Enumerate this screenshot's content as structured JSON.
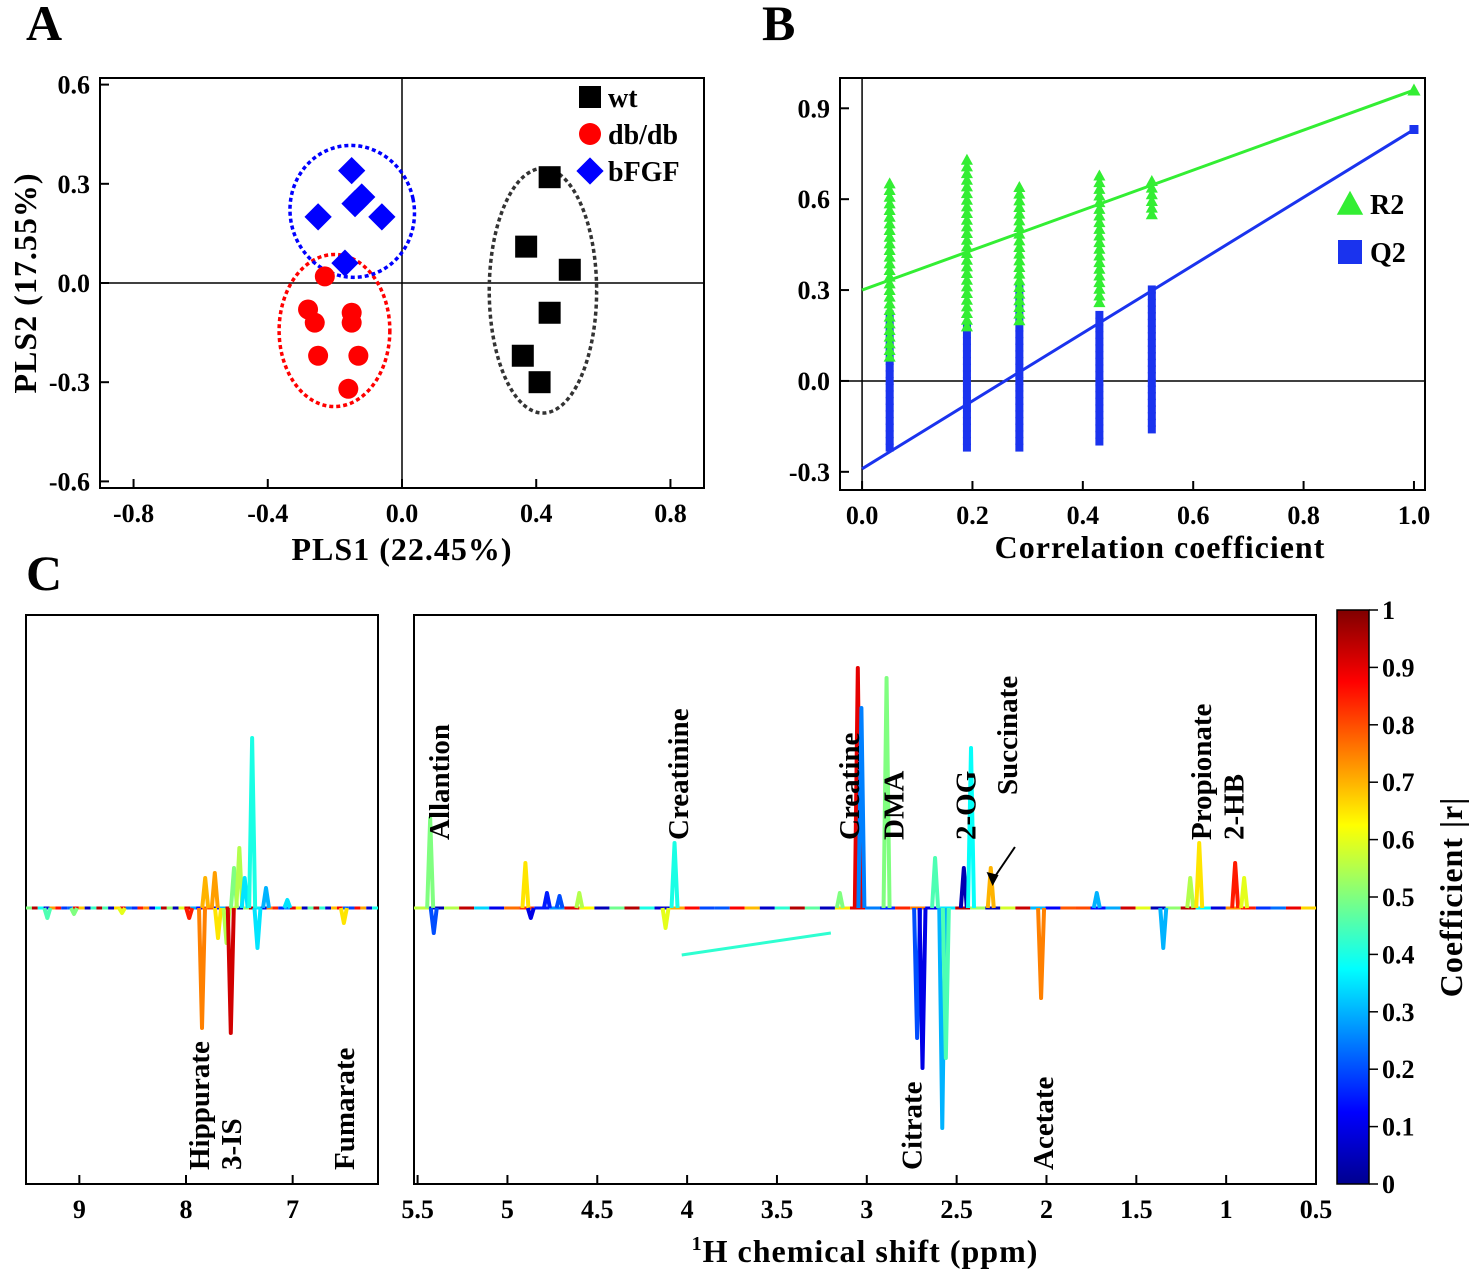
{
  "chart_data": [
    {
      "panel": "A",
      "type": "scatter",
      "xlabel": "PLS1 (22.45%)",
      "ylabel": "PLS2 (17.55%)",
      "xlim": [
        -0.9,
        0.9
      ],
      "ylim": [
        -0.62,
        0.62
      ],
      "xticks": [
        "-0.8",
        "-0.4",
        "0.0",
        "0.4",
        "0.8"
      ],
      "yticks": [
        "0.6",
        "0.3",
        "0.0",
        "-0.3",
        "-0.6"
      ],
      "xtick_values": [
        -0.8,
        -0.4,
        0.0,
        0.4,
        0.8
      ],
      "ytick_values": [
        0.6,
        0.3,
        0.0,
        -0.3,
        -0.6
      ],
      "legend_position": "top-right",
      "series": [
        {
          "name": "wt",
          "marker": "square",
          "color": "#000000",
          "ellipse_color": "#333333",
          "points": [
            [
              0.44,
              0.32
            ],
            [
              0.37,
              0.11
            ],
            [
              0.5,
              0.04
            ],
            [
              0.44,
              -0.09
            ],
            [
              0.36,
              -0.22
            ],
            [
              0.41,
              -0.3
            ]
          ]
        },
        {
          "name": "db/db",
          "marker": "circle",
          "color": "#ff0000",
          "ellipse_color": "#ff0000",
          "points": [
            [
              -0.23,
              0.02
            ],
            [
              -0.28,
              -0.08
            ],
            [
              -0.26,
              -0.12
            ],
            [
              -0.15,
              -0.09
            ],
            [
              -0.15,
              -0.12
            ],
            [
              -0.25,
              -0.22
            ],
            [
              -0.13,
              -0.22
            ],
            [
              -0.16,
              -0.32
            ]
          ]
        },
        {
          "name": "bFGF",
          "marker": "diamond",
          "color": "#0000ff",
          "ellipse_color": "#0000ff",
          "points": [
            [
              -0.15,
              0.34
            ],
            [
              -0.12,
              0.26
            ],
            [
              -0.25,
              0.2
            ],
            [
              -0.14,
              0.24
            ],
            [
              -0.06,
              0.2
            ],
            [
              -0.17,
              0.06
            ]
          ]
        }
      ]
    },
    {
      "panel": "B",
      "type": "scatter",
      "xlabel": "Correlation coefficient",
      "ylabel": "",
      "xlim": [
        -0.04,
        1.02
      ],
      "ylim": [
        -0.36,
        1.0
      ],
      "xticks": [
        "0.0",
        "0.2",
        "0.4",
        "0.6",
        "0.8",
        "1.0"
      ],
      "yticks": [
        "0.9",
        "0.6",
        "0.3",
        "0.0",
        "-0.3"
      ],
      "xtick_values": [
        0.0,
        0.2,
        0.4,
        0.6,
        0.8,
        1.0
      ],
      "ytick_values": [
        0.9,
        0.6,
        0.3,
        0.0,
        -0.3
      ],
      "legend_position": "right",
      "series": [
        {
          "name": "R2",
          "marker": "triangle",
          "color": "#33ee33",
          "columns": [
            {
              "x": 0.05,
              "min": 0.08,
              "max": 0.67
            },
            {
              "x": 0.19,
              "min": 0.18,
              "max": 0.75
            },
            {
              "x": 0.285,
              "min": 0.2,
              "max": 0.64
            },
            {
              "x": 0.43,
              "min": 0.26,
              "max": 0.69
            },
            {
              "x": 0.525,
              "min": 0.55,
              "max": 0.67
            }
          ],
          "extra_point": [
            1.0,
            0.96
          ],
          "fit_line": [
            [
              0.0,
              0.3
            ],
            [
              1.0,
              0.96
            ]
          ]
        },
        {
          "name": "Q2",
          "marker": "square",
          "color": "#1a33ee",
          "columns": [
            {
              "x": 0.05,
              "min": -0.22,
              "max": 0.23
            },
            {
              "x": 0.19,
              "min": -0.22,
              "max": 0.18
            },
            {
              "x": 0.285,
              "min": -0.22,
              "max": 0.31
            },
            {
              "x": 0.43,
              "min": -0.2,
              "max": 0.23
            },
            {
              "x": 0.525,
              "min": -0.16,
              "max": 0.32
            }
          ],
          "extra_point": [
            1.0,
            0.83
          ],
          "fit_line": [
            [
              0.0,
              -0.29
            ],
            [
              1.0,
              0.83
            ]
          ]
        }
      ]
    },
    {
      "panel": "C",
      "type": "line",
      "xlabel_sup": "1",
      "xlabel": "H chemical shift (ppm)",
      "colorbar_label": "Coefficient |r|",
      "colorbar_ticks": [
        "1",
        "0.9",
        "0.8",
        "0.7",
        "0.6",
        "0.5",
        "0.4",
        "0.3",
        "0.2",
        "0.1",
        "0"
      ],
      "colorbar_values": [
        1,
        0.9,
        0.8,
        0.7,
        0.6,
        0.5,
        0.4,
        0.3,
        0.2,
        0.1,
        0
      ],
      "left_region": {
        "xlim": [
          9.5,
          6.2
        ],
        "xticks": [
          "9",
          "8",
          "7"
        ],
        "xtick_values": [
          9,
          8,
          7
        ],
        "annotations": [
          {
            "text": "Hippurate",
            "ppm": 7.88
          },
          {
            "text": "3-IS",
            "ppm": 7.58
          },
          {
            "text": "Fumarate",
            "ppm": 6.52
          }
        ],
        "peaks": [
          {
            "ppm": 9.3,
            "h": -0.1,
            "r": 0.45
          },
          {
            "ppm": 9.05,
            "h": -0.06,
            "r": 0.5
          },
          {
            "ppm": 8.6,
            "h": -0.05,
            "r": 0.6
          },
          {
            "ppm": 7.97,
            "h": -0.1,
            "r": 0.85
          },
          {
            "ppm": 7.85,
            "h": -1.2,
            "r": 0.75
          },
          {
            "ppm": 7.82,
            "h": 0.3,
            "r": 0.7
          },
          {
            "ppm": 7.73,
            "h": 0.35,
            "r": 0.72
          },
          {
            "ppm": 7.7,
            "h": -0.3,
            "r": 0.65
          },
          {
            "ppm": 7.62,
            "h": -0.35,
            "r": 0.55
          },
          {
            "ppm": 7.58,
            "h": -1.25,
            "r": 0.92
          },
          {
            "ppm": 7.55,
            "h": 0.4,
            "r": 0.5
          },
          {
            "ppm": 7.5,
            "h": 0.6,
            "r": 0.55
          },
          {
            "ppm": 7.45,
            "h": 0.3,
            "r": 0.35
          },
          {
            "ppm": 7.38,
            "h": 1.7,
            "r": 0.4
          },
          {
            "ppm": 7.33,
            "h": -0.4,
            "r": 0.35
          },
          {
            "ppm": 7.25,
            "h": 0.2,
            "r": 0.3
          },
          {
            "ppm": 7.05,
            "h": 0.08,
            "r": 0.35
          },
          {
            "ppm": 6.52,
            "h": -0.15,
            "r": 0.65
          }
        ]
      },
      "right_region": {
        "xlim": [
          5.52,
          0.5
        ],
        "xticks": [
          "5.5",
          "5",
          "4.5",
          "4",
          "3.5",
          "3",
          "2.5",
          "2",
          "1.5",
          "1",
          "0.5"
        ],
        "xtick_values": [
          5.5,
          5,
          4.5,
          4,
          3.5,
          3,
          2.5,
          2,
          1.5,
          1,
          0.5
        ],
        "annotations": [
          {
            "text": "Allantion",
            "ppm": 5.38,
            "side": "top"
          },
          {
            "text": "Creatinine",
            "ppm": 4.05,
            "side": "top"
          },
          {
            "text": "Creatine",
            "ppm": 3.1,
            "side": "top"
          },
          {
            "text": "DMA",
            "ppm": 2.85,
            "side": "top"
          },
          {
            "text": "2-OG",
            "ppm": 2.45,
            "side": "top"
          },
          {
            "text": "Succinate",
            "ppm": 2.22,
            "side": "top"
          },
          {
            "text": "Propionate",
            "ppm": 1.14,
            "side": "top"
          },
          {
            "text": "2-HB",
            "ppm": 0.96,
            "side": "top"
          },
          {
            "text": "Citrate",
            "ppm": 2.75,
            "side": "bottom"
          },
          {
            "text": "Acetate",
            "ppm": 2.02,
            "side": "bottom"
          }
        ],
        "peaks": [
          {
            "ppm": 5.43,
            "h": 0.9,
            "r": 0.5
          },
          {
            "ppm": 5.41,
            "h": -0.25,
            "r": 0.2
          },
          {
            "ppm": 4.9,
            "h": 0.45,
            "r": 0.65
          },
          {
            "ppm": 4.87,
            "h": -0.1,
            "r": 0.1
          },
          {
            "ppm": 4.78,
            "h": 0.15,
            "r": 0.15
          },
          {
            "ppm": 4.71,
            "h": 0.12,
            "r": 0.2
          },
          {
            "ppm": 4.6,
            "h": 0.15,
            "r": 0.55
          },
          {
            "ppm": 4.12,
            "h": -0.2,
            "r": 0.6
          },
          {
            "ppm": 4.07,
            "h": 0.65,
            "r": 0.4
          },
          {
            "ppm": 3.15,
            "h": 0.15,
            "r": 0.5
          },
          {
            "ppm": 3.05,
            "h": 2.4,
            "r": 0.9
          },
          {
            "ppm": 3.03,
            "h": 2.0,
            "r": 0.25
          },
          {
            "ppm": 2.89,
            "h": 2.3,
            "r": 0.5
          },
          {
            "ppm": 2.72,
            "h": -1.3,
            "r": 0.2
          },
          {
            "ppm": 2.69,
            "h": -1.6,
            "r": 0.1
          },
          {
            "ppm": 2.62,
            "h": 0.5,
            "r": 0.45
          },
          {
            "ppm": 2.58,
            "h": -2.2,
            "r": 0.3
          },
          {
            "ppm": 2.56,
            "h": -1.5,
            "r": 0.45
          },
          {
            "ppm": 2.46,
            "h": 0.4,
            "r": 0.05
          },
          {
            "ppm": 2.42,
            "h": 1.6,
            "r": 0.38
          },
          {
            "ppm": 2.31,
            "h": 0.4,
            "r": 0.7
          },
          {
            "ppm": 2.03,
            "h": -0.9,
            "r": 0.75
          },
          {
            "ppm": 1.72,
            "h": 0.15,
            "r": 0.3
          },
          {
            "ppm": 1.35,
            "h": -0.4,
            "r": 0.3
          },
          {
            "ppm": 1.2,
            "h": 0.3,
            "r": 0.55
          },
          {
            "ppm": 1.15,
            "h": 0.65,
            "r": 0.65
          },
          {
            "ppm": 0.95,
            "h": 0.45,
            "r": 0.85
          },
          {
            "ppm": 0.9,
            "h": 0.3,
            "r": 0.6
          }
        ]
      }
    }
  ]
}
